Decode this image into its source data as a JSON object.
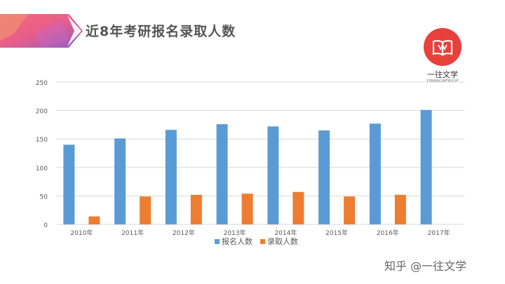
{
  "slide": {
    "title": "近8年考研报名录取人数",
    "logo": {
      "name": "一往文学",
      "sub": "YIWANGWENXUE"
    },
    "watermark": "知乎 @一往文学"
  },
  "colors": {
    "apply": "#5b9bd5",
    "admit": "#ed7d31",
    "title": "#555555",
    "grid": "#d9d9d9",
    "logo": "#e8403b"
  },
  "chart_data": {
    "type": "bar",
    "categories": [
      "2010年",
      "2011年",
      "2012年",
      "2013年",
      "2014年",
      "2015年",
      "2016年",
      "2017年"
    ],
    "series": [
      {
        "name": "报名人数",
        "values": [
          140,
          151,
          166,
          176,
          172,
          165,
          177,
          201
        ]
      },
      {
        "name": "录取人数",
        "values": [
          14,
          49,
          52,
          54,
          57,
          49,
          52,
          null
        ]
      }
    ],
    "ylim": [
      0,
      250
    ],
    "yticks": [
      0,
      50,
      100,
      150,
      200,
      250
    ],
    "ytick_labels": [
      "0",
      "50",
      "100",
      "150",
      "200",
      "250"
    ],
    "grid": true,
    "legend": "bottom"
  }
}
